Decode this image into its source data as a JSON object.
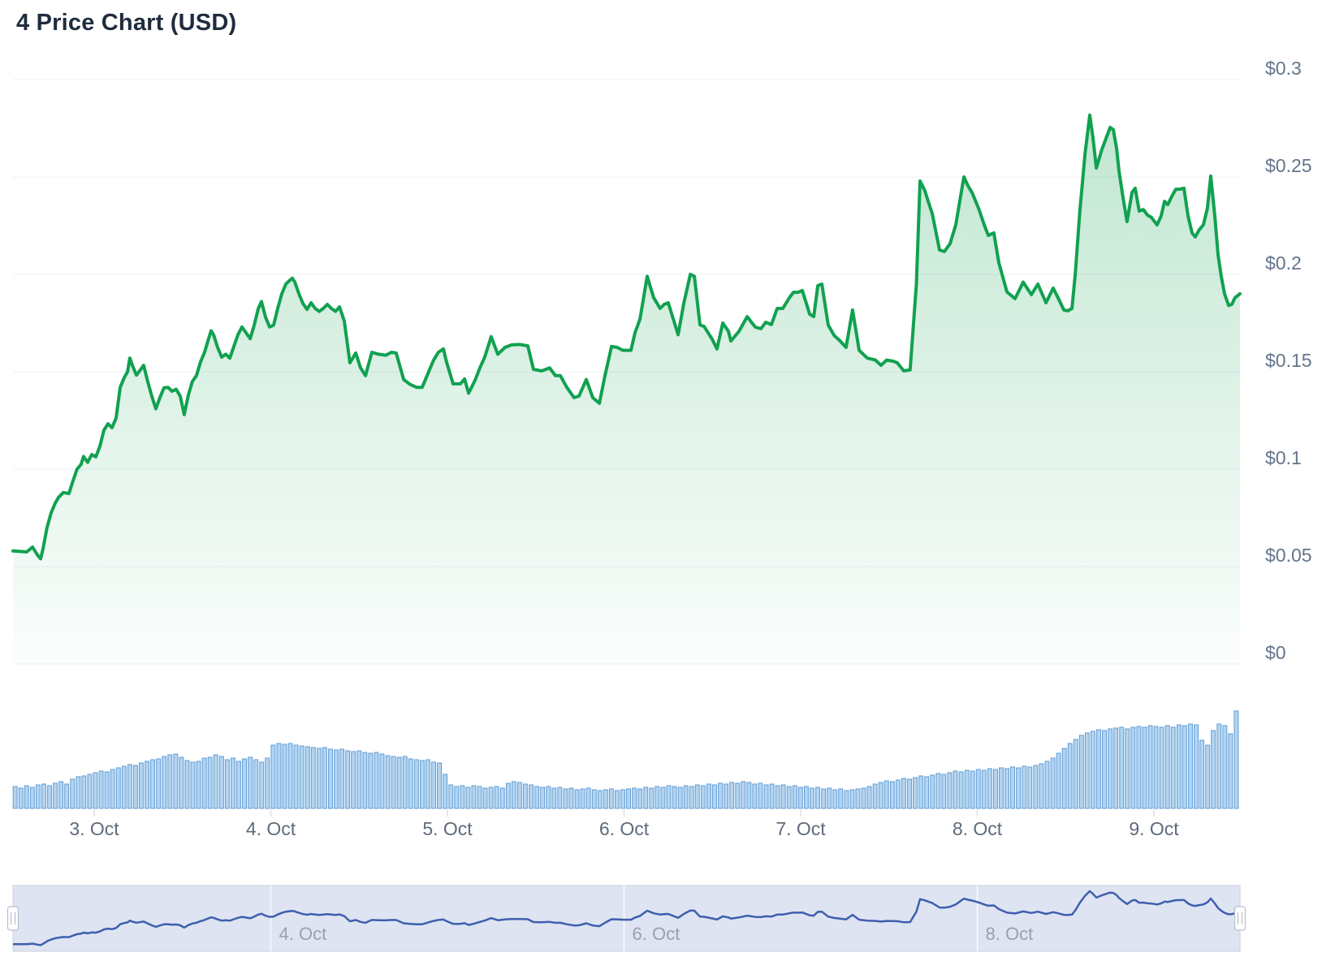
{
  "title": "4 Price Chart (USD)",
  "colors": {
    "title_text": "#1f2c3d",
    "axis_label": "#64748b",
    "x_label": "#5f6b7b",
    "gridline": "#eef0f4",
    "tick": "#dde0e6",
    "price_line": "#11a150",
    "area_top": "rgba(17,161,80,0.28)",
    "area_bottom": "rgba(17,161,80,0.015)",
    "volume_fill": "#b3d4f0",
    "volume_stroke": "#619dd5",
    "nav_background": "#dee4f2",
    "nav_line": "#3e5fae",
    "nav_gridline": "rgba(255,255,255,0.85)",
    "nav_border": "#c9d0de",
    "nav_label": "#98a1ad",
    "handle_fill": "#ffffff",
    "handle_stroke": "#b6bfcc"
  },
  "chart_data": {
    "type": "line",
    "title": "4 Price Chart (USD)",
    "subtype": "price-with-volume-and-navigator",
    "x_unit": "day of October",
    "x_range_days": [
      2.54,
      9.49
    ],
    "y_axis": {
      "side": "right",
      "min": 0,
      "max": 0.3,
      "tick_interval": 0.05,
      "ticks": [
        {
          "value": 0.3,
          "label": "$0.3"
        },
        {
          "value": 0.25,
          "label": "$0.25"
        },
        {
          "value": 0.2,
          "label": "$0.2"
        },
        {
          "value": 0.15,
          "label": "$0.15"
        },
        {
          "value": 0.1,
          "label": "$0.1"
        },
        {
          "value": 0.05,
          "label": "$0.05"
        },
        {
          "value": 0,
          "label": "$0"
        }
      ]
    },
    "x_axis": {
      "ticks": [
        {
          "day": 3,
          "label": "3. Oct"
        },
        {
          "day": 4,
          "label": "4. Oct"
        },
        {
          "day": 5,
          "label": "5. Oct"
        },
        {
          "day": 6,
          "label": "6. Oct"
        },
        {
          "day": 7,
          "label": "7. Oct"
        },
        {
          "day": 8,
          "label": "8. Oct"
        },
        {
          "day": 9,
          "label": "9. Oct"
        }
      ]
    },
    "price": {
      "unit": "USD",
      "points": [
        [
          2.54,
          0.058
        ],
        [
          2.618,
          0.0575
        ],
        [
          2.651,
          0.06
        ],
        [
          2.678,
          0.056
        ],
        [
          2.697,
          0.054
        ],
        [
          2.71,
          0.059
        ],
        [
          2.733,
          0.07
        ],
        [
          2.756,
          0.0775
        ],
        [
          2.779,
          0.0825
        ],
        [
          2.798,
          0.0855
        ],
        [
          2.825,
          0.088
        ],
        [
          2.857,
          0.0875
        ],
        [
          2.88,
          0.094
        ],
        [
          2.903,
          0.1
        ],
        [
          2.926,
          0.1025
        ],
        [
          2.94,
          0.1065
        ],
        [
          2.963,
          0.1035
        ],
        [
          2.986,
          0.1075
        ],
        [
          3.009,
          0.1063
        ],
        [
          3.032,
          0.1117
        ],
        [
          3.055,
          0.12
        ],
        [
          3.078,
          0.1233
        ],
        [
          3.101,
          0.1213
        ],
        [
          3.124,
          0.1263
        ],
        [
          3.147,
          0.142
        ],
        [
          3.17,
          0.147
        ],
        [
          3.189,
          0.15
        ],
        [
          3.202,
          0.157
        ],
        [
          3.216,
          0.1533
        ],
        [
          3.239,
          0.1483
        ],
        [
          3.257,
          0.1504
        ],
        [
          3.28,
          0.1533
        ],
        [
          3.303,
          0.145
        ],
        [
          3.326,
          0.1375
        ],
        [
          3.349,
          0.131
        ],
        [
          3.372,
          0.1367
        ],
        [
          3.395,
          0.1417
        ],
        [
          3.418,
          0.142
        ],
        [
          3.441,
          0.14
        ],
        [
          3.464,
          0.141
        ],
        [
          3.487,
          0.1375
        ],
        [
          3.51,
          0.128
        ],
        [
          3.533,
          0.138
        ],
        [
          3.556,
          0.145
        ],
        [
          3.579,
          0.148
        ],
        [
          3.602,
          0.155
        ],
        [
          3.625,
          0.16
        ],
        [
          3.648,
          0.167
        ],
        [
          3.662,
          0.171
        ],
        [
          3.676,
          0.169
        ],
        [
          3.699,
          0.1625
        ],
        [
          3.722,
          0.1575
        ],
        [
          3.745,
          0.159
        ],
        [
          3.768,
          0.157
        ],
        [
          3.791,
          0.163
        ],
        [
          3.814,
          0.169
        ],
        [
          3.837,
          0.173
        ],
        [
          3.86,
          0.17
        ],
        [
          3.883,
          0.167
        ],
        [
          3.906,
          0.174
        ],
        [
          3.929,
          0.1825
        ],
        [
          3.947,
          0.186
        ],
        [
          3.97,
          0.178
        ],
        [
          3.993,
          0.173
        ],
        [
          4.016,
          0.174
        ],
        [
          4.039,
          0.1825
        ],
        [
          4.062,
          0.19
        ],
        [
          4.085,
          0.195
        ],
        [
          4.108,
          0.197
        ],
        [
          4.122,
          0.198
        ],
        [
          4.136,
          0.196
        ],
        [
          4.159,
          0.19
        ],
        [
          4.182,
          0.185
        ],
        [
          4.205,
          0.182
        ],
        [
          4.228,
          0.1854
        ],
        [
          4.251,
          0.1825
        ],
        [
          4.274,
          0.181
        ],
        [
          4.297,
          0.1825
        ],
        [
          4.32,
          0.1846
        ],
        [
          4.343,
          0.1825
        ],
        [
          4.366,
          0.181
        ],
        [
          4.389,
          0.1833
        ],
        [
          4.416,
          0.176
        ],
        [
          4.448,
          0.1546
        ],
        [
          4.481,
          0.1596
        ],
        [
          4.508,
          0.152
        ],
        [
          4.536,
          0.148
        ],
        [
          4.572,
          0.16
        ],
        [
          4.609,
          0.159
        ],
        [
          4.651,
          0.1585
        ],
        [
          4.683,
          0.16
        ],
        [
          4.71,
          0.1596
        ],
        [
          4.752,
          0.146
        ],
        [
          4.789,
          0.1435
        ],
        [
          4.825,
          0.142
        ],
        [
          4.857,
          0.142
        ],
        [
          4.894,
          0.15
        ],
        [
          4.922,
          0.156
        ],
        [
          4.949,
          0.16
        ],
        [
          4.977,
          0.1617
        ],
        [
          4.995,
          0.155
        ],
        [
          5.032,
          0.1438
        ],
        [
          5.073,
          0.1438
        ],
        [
          5.097,
          0.1463
        ],
        [
          5.12,
          0.139
        ],
        [
          5.156,
          0.1455
        ],
        [
          5.184,
          0.152
        ],
        [
          5.211,
          0.1575
        ],
        [
          5.248,
          0.168
        ],
        [
          5.285,
          0.159
        ],
        [
          5.326,
          0.1625
        ],
        [
          5.363,
          0.1638
        ],
        [
          5.409,
          0.164
        ],
        [
          5.455,
          0.1633
        ],
        [
          5.487,
          0.1513
        ],
        [
          5.533,
          0.1504
        ],
        [
          5.579,
          0.152
        ],
        [
          5.611,
          0.148
        ],
        [
          5.639,
          0.148
        ],
        [
          5.676,
          0.142
        ],
        [
          5.717,
          0.1367
        ],
        [
          5.745,
          0.1375
        ],
        [
          5.786,
          0.146
        ],
        [
          5.823,
          0.1367
        ],
        [
          5.86,
          0.1338
        ],
        [
          5.892,
          0.148
        ],
        [
          5.929,
          0.163
        ],
        [
          5.961,
          0.1625
        ],
        [
          5.993,
          0.161
        ],
        [
          6.039,
          0.161
        ],
        [
          6.062,
          0.17
        ],
        [
          6.09,
          0.177
        ],
        [
          6.131,
          0.199
        ],
        [
          6.168,
          0.188
        ],
        [
          6.204,
          0.1825
        ],
        [
          6.227,
          0.1846
        ],
        [
          6.25,
          0.1854
        ],
        [
          6.306,
          0.169
        ],
        [
          6.338,
          0.185
        ],
        [
          6.375,
          0.2
        ],
        [
          6.398,
          0.199
        ],
        [
          6.43,
          0.174
        ],
        [
          6.453,
          0.1733
        ],
        [
          6.499,
          0.1667
        ],
        [
          6.526,
          0.1617
        ],
        [
          6.559,
          0.175
        ],
        [
          6.591,
          0.1708
        ],
        [
          6.605,
          0.1658
        ],
        [
          6.651,
          0.1708
        ],
        [
          6.697,
          0.1783
        ],
        [
          6.743,
          0.1729
        ],
        [
          6.775,
          0.1721
        ],
        [
          6.802,
          0.1754
        ],
        [
          6.834,
          0.1742
        ],
        [
          6.867,
          0.1825
        ],
        [
          6.899,
          0.1825
        ],
        [
          6.936,
          0.188
        ],
        [
          6.959,
          0.1908
        ],
        [
          6.986,
          0.1908
        ],
        [
          7.009,
          0.1917
        ],
        [
          7.051,
          0.1796
        ],
        [
          7.074,
          0.1783
        ],
        [
          7.097,
          0.1942
        ],
        [
          7.12,
          0.195
        ],
        [
          7.156,
          0.174
        ],
        [
          7.189,
          0.1687
        ],
        [
          7.221,
          0.166
        ],
        [
          7.257,
          0.1625
        ],
        [
          7.294,
          0.1817
        ],
        [
          7.331,
          0.161
        ],
        [
          7.377,
          0.157
        ],
        [
          7.423,
          0.156
        ],
        [
          7.455,
          0.1533
        ],
        [
          7.487,
          0.156
        ],
        [
          7.524,
          0.1554
        ],
        [
          7.547,
          0.1546
        ],
        [
          7.584,
          0.1504
        ],
        [
          7.62,
          0.151
        ],
        [
          7.655,
          0.195
        ],
        [
          7.676,
          0.2479
        ],
        [
          7.703,
          0.243
        ],
        [
          7.722,
          0.2375
        ],
        [
          7.745,
          0.2312
        ],
        [
          7.786,
          0.2125
        ],
        [
          7.814,
          0.2117
        ],
        [
          7.846,
          0.2158
        ],
        [
          7.878,
          0.2254
        ],
        [
          7.924,
          0.25
        ],
        [
          7.947,
          0.2455
        ],
        [
          7.97,
          0.242
        ],
        [
          8.007,
          0.234
        ],
        [
          8.039,
          0.2254
        ],
        [
          8.062,
          0.22
        ],
        [
          8.094,
          0.2213
        ],
        [
          8.122,
          0.206
        ],
        [
          8.168,
          0.191
        ],
        [
          8.214,
          0.1875
        ],
        [
          8.26,
          0.196
        ],
        [
          8.306,
          0.1896
        ],
        [
          8.343,
          0.195
        ],
        [
          8.389,
          0.1854
        ],
        [
          8.43,
          0.1929
        ],
        [
          8.457,
          0.188
        ],
        [
          8.49,
          0.1817
        ],
        [
          8.513,
          0.1813
        ],
        [
          8.536,
          0.1825
        ],
        [
          8.555,
          0.2004
        ],
        [
          8.58,
          0.232
        ],
        [
          8.61,
          0.262
        ],
        [
          8.637,
          0.2817
        ],
        [
          8.655,
          0.27
        ],
        [
          8.674,
          0.2546
        ],
        [
          8.705,
          0.264
        ],
        [
          8.752,
          0.2754
        ],
        [
          8.77,
          0.2742
        ],
        [
          8.789,
          0.2646
        ],
        [
          8.802,
          0.2533
        ],
        [
          8.825,
          0.2396
        ],
        [
          8.848,
          0.2271
        ],
        [
          8.876,
          0.242
        ],
        [
          8.894,
          0.2442
        ],
        [
          8.917,
          0.2325
        ],
        [
          8.94,
          0.2333
        ],
        [
          8.963,
          0.2304
        ],
        [
          8.986,
          0.2292
        ],
        [
          9.018,
          0.2254
        ],
        [
          9.041,
          0.23
        ],
        [
          9.06,
          0.2375
        ],
        [
          9.078,
          0.2358
        ],
        [
          9.101,
          0.24
        ],
        [
          9.124,
          0.2437
        ],
        [
          9.147,
          0.2437
        ],
        [
          9.17,
          0.2442
        ],
        [
          9.193,
          0.23
        ],
        [
          9.216,
          0.2212
        ],
        [
          9.234,
          0.2192
        ],
        [
          9.257,
          0.2229
        ],
        [
          9.28,
          0.2254
        ],
        [
          9.303,
          0.234
        ],
        [
          9.322,
          0.2504
        ],
        [
          9.345,
          0.23
        ],
        [
          9.363,
          0.21
        ],
        [
          9.381,
          0.199
        ],
        [
          9.4,
          0.19
        ],
        [
          9.423,
          0.184
        ],
        [
          9.441,
          0.1846
        ],
        [
          9.459,
          0.188
        ],
        [
          9.487,
          0.19
        ]
      ]
    },
    "volume": {
      "note": "relative bar heights, left to right, tallest = 120",
      "relative_heights": [
        27,
        25,
        28,
        26,
        29,
        30,
        28,
        31,
        33,
        30,
        36,
        39,
        40,
        42,
        44,
        46,
        45,
        48,
        50,
        52,
        54,
        53,
        56,
        58,
        60,
        61,
        64,
        66,
        67,
        63,
        59,
        57,
        58,
        62,
        63,
        66,
        64,
        60,
        62,
        58,
        61,
        63,
        60,
        57,
        62,
        78,
        80,
        79,
        80,
        78,
        77,
        76,
        75,
        74,
        75,
        73,
        72,
        73,
        71,
        70,
        71,
        69,
        68,
        69,
        67,
        65,
        64,
        63,
        64,
        61,
        60,
        59,
        60,
        57,
        56,
        42,
        29,
        27,
        28,
        26,
        28,
        27,
        25,
        26,
        27,
        25,
        31,
        33,
        32,
        30,
        29,
        27,
        26,
        27,
        25,
        26,
        24,
        25,
        23,
        24,
        25,
        23,
        22,
        23,
        24,
        22,
        23,
        24,
        25,
        24,
        26,
        25,
        27,
        26,
        28,
        27,
        26,
        28,
        27,
        29,
        28,
        30,
        29,
        31,
        30,
        32,
        31,
        33,
        32,
        30,
        31,
        29,
        30,
        28,
        29,
        27,
        28,
        26,
        27,
        25,
        26,
        24,
        25,
        23,
        24,
        22,
        23,
        24,
        25,
        27,
        30,
        32,
        34,
        33,
        35,
        37,
        36,
        38,
        40,
        39,
        41,
        43,
        42,
        44,
        46,
        45,
        47,
        46,
        48,
        47,
        49,
        48,
        50,
        49,
        51,
        50,
        52,
        51,
        53,
        55,
        58,
        62,
        68,
        74,
        80,
        85,
        90,
        93,
        95,
        97,
        96,
        98,
        99,
        100,
        98,
        100,
        101,
        100,
        102,
        101,
        100,
        102,
        100,
        103,
        102,
        104,
        103,
        84,
        78,
        96,
        104,
        102,
        92,
        120
      ]
    },
    "navigator": {
      "range_days": [
        2.54,
        9.49
      ],
      "window": "full",
      "ticks": [
        {
          "day": 4,
          "label": "4. Oct"
        },
        {
          "day": 6,
          "label": "6. Oct"
        },
        {
          "day": 8,
          "label": "8. Oct"
        }
      ]
    }
  }
}
